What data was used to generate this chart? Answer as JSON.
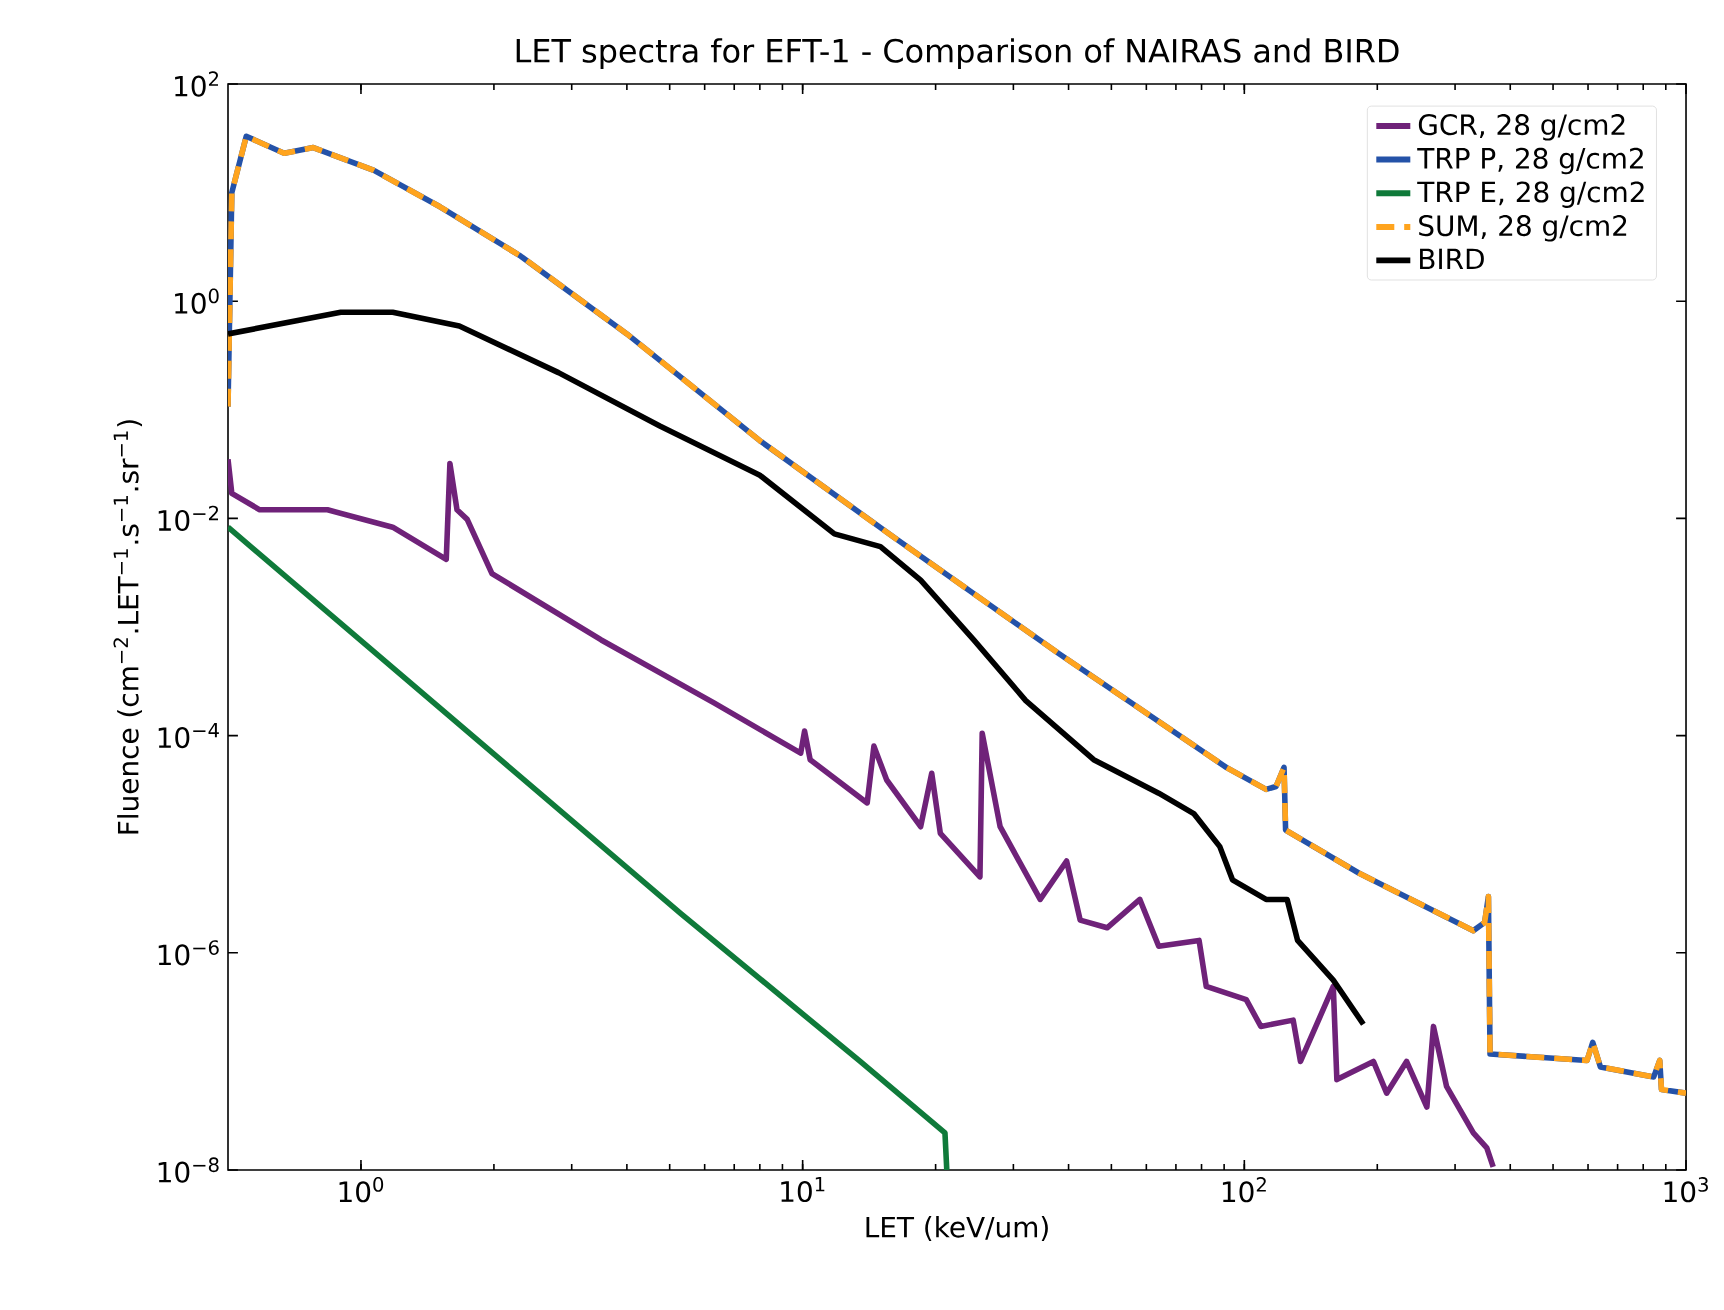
{
  "chart_data": {
    "type": "line",
    "title": "LET spectra for EFT-1 - Comparison of NAIRAS and BIRD",
    "xlabel": "LET (keV/um)",
    "ylabel": "Fluence (cm$^{−2}$.LET$^{−1}$.s$^{−1}$.sr$^{−1}$)",
    "log": "xy",
    "legend": "top right",
    "marker": "none",
    "xlim": [
      0.5,
      1000
    ],
    "ylim": [
      1e-08,
      100
    ],
    "xticks": [
      {
        "value": 1,
        "label": "10$^{0}$"
      },
      {
        "value": 10,
        "label": "10$^{1}$"
      },
      {
        "value": 100,
        "label": "10$^{2}$"
      },
      {
        "value": 1000,
        "label": "10$^{3}$"
      }
    ],
    "yticks": [
      {
        "value": 1e-08,
        "label": "10$^{−8}$"
      },
      {
        "value": 1e-06,
        "label": "10$^{−6}$"
      },
      {
        "value": 0.0001,
        "label": "10$^{−4}$"
      },
      {
        "value": 0.01,
        "label": "10$^{−2}$"
      },
      {
        "value": 1,
        "label": "10$^{0}$"
      },
      {
        "value": 100,
        "label": "10$^{2}$"
      }
    ],
    "series": [
      {
        "name": "GCR, 28 g/cm2",
        "color": "#6f2279",
        "x": [
          0.5,
          0.51,
          0.59,
          0.84,
          1.18,
          1.56,
          1.59,
          1.65,
          1.74,
          1.98,
          3.5,
          6.3,
          9.9,
          10.1,
          10.4,
          14,
          14.5,
          15.5,
          18.5,
          19.6,
          20.5,
          25.2,
          25.5,
          28,
          34.5,
          39.6,
          42.5,
          48.9,
          58,
          64,
          79,
          82,
          101,
          109,
          129,
          134,
          159,
          162,
          196,
          210,
          233,
          259,
          268,
          287,
          330,
          354,
          366
        ],
        "values": [
          0.035,
          0.017,
          0.012,
          0.012,
          0.0083,
          0.0042,
          0.032,
          0.012,
          0.0098,
          0.0031,
          0.00076,
          0.0002,
          6.9e-05,
          0.00011,
          6e-05,
          2.4e-05,
          8e-05,
          3.9e-05,
          1.45e-05,
          4.5e-05,
          1.26e-05,
          5e-06,
          0.000105,
          1.45e-05,
          3.1e-06,
          7e-06,
          2e-06,
          1.7e-06,
          3.1e-06,
          1.15e-06,
          1.3e-06,
          4.9e-07,
          3.7e-07,
          2.1e-07,
          2.4e-07,
          1e-07,
          4.9e-07,
          6.8e-08,
          1e-07,
          5.1e-08,
          1e-07,
          3.8e-08,
          2.1e-07,
          5.9e-08,
          2.2e-08,
          1.6e-08,
          1.07e-08
        ]
      },
      {
        "name": "TRP P, 28 g/cm2",
        "color": "#2452a8",
        "x": [
          0.5,
          0.51,
          0.55,
          0.67,
          0.78,
          1.07,
          1.51,
          2.3,
          4.0,
          8.0,
          16,
          38,
          91,
          112,
          118,
          123,
          124,
          182,
          330,
          350,
          357,
          360,
          597,
          615,
          640,
          845,
          872,
          880,
          1000
        ],
        "values": [
          0.107,
          10,
          33,
          23,
          26,
          16,
          7.4,
          2.6,
          0.5,
          0.052,
          0.0068,
          0.00057,
          5.1e-05,
          3.2e-05,
          3.4e-05,
          5.1e-05,
          1.35e-05,
          5.4e-06,
          1.6e-06,
          1.9e-06,
          3.3e-06,
          1.17e-07,
          1.02e-07,
          1.5e-07,
          8.9e-08,
          7.2e-08,
          1.02e-07,
          5.5e-08,
          5.1e-08
        ]
      },
      {
        "name": "TRP E, 28 g/cm2",
        "color": "#0f7a3a",
        "x": [
          0.5,
          5.3,
          13.5,
          21,
          21.2
        ],
        "values": [
          0.0083,
          2.3e-06,
          1e-07,
          2.2e-08,
          1e-08
        ]
      },
      {
        "name": "SUM, 28 g/cm2",
        "color": "#ffa41e",
        "line_style": "dashed",
        "x": [
          0.5,
          0.51,
          0.55,
          0.67,
          0.78,
          1.07,
          1.51,
          2.3,
          4.0,
          8.0,
          16,
          38,
          91,
          112,
          118,
          123,
          124,
          182,
          330,
          350,
          357,
          360,
          597,
          615,
          640,
          845,
          872,
          880,
          1000
        ],
        "values": [
          0.107,
          10,
          33,
          23,
          26,
          16,
          7.4,
          2.6,
          0.5,
          0.052,
          0.0068,
          0.00057,
          5.1e-05,
          3.2e-05,
          3.4e-05,
          5.1e-05,
          1.35e-05,
          5.4e-06,
          1.6e-06,
          1.9e-06,
          3.3e-06,
          1.17e-07,
          1.02e-07,
          1.5e-07,
          8.9e-08,
          7.2e-08,
          1.02e-07,
          5.5e-08,
          5.1e-08
        ]
      },
      {
        "name": "BIRD",
        "color": "#000000",
        "x": [
          0.5,
          0.9,
          1.18,
          1.67,
          2.8,
          4.75,
          8.0,
          11.8,
          15,
          18.5,
          24.4,
          32,
          45.6,
          64,
          77,
          88,
          94,
          112,
          125,
          132,
          159,
          186
        ],
        "values": [
          0.5,
          0.79,
          0.79,
          0.59,
          0.22,
          0.071,
          0.025,
          0.0072,
          0.0055,
          0.0027,
          0.00076,
          0.00021,
          6e-05,
          2.95e-05,
          1.9e-05,
          9.5e-06,
          4.7e-06,
          3.1e-06,
          3.1e-06,
          1.3e-06,
          5.6e-07,
          2.2e-07
        ]
      }
    ]
  }
}
